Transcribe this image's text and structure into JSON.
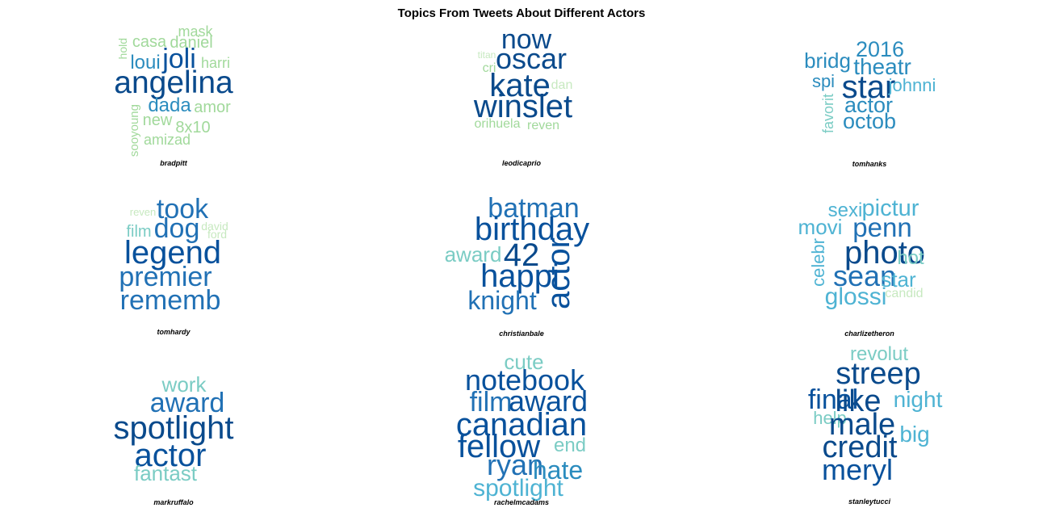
{
  "chart_data": {
    "type": "wordcloud",
    "title": "Topics From Tweets About Different Actors",
    "colors": {
      "level1": "#c7e9c0",
      "level2": "#a1d99b",
      "level3": "#7bccc4",
      "level4": "#4eb3d3",
      "level5": "#2b8cbe",
      "level6": "#2171b5",
      "level7": "#08519c",
      "level8": "#0a4a8c"
    },
    "panels": [
      {
        "caption": "bradpitt",
        "words": [
          {
            "text": "angelina",
            "weight": 10
          },
          {
            "text": "joli",
            "weight": 8
          },
          {
            "text": "loui",
            "weight": 5
          },
          {
            "text": "dada",
            "weight": 5
          },
          {
            "text": "casa",
            "weight": 3
          },
          {
            "text": "daniel",
            "weight": 3
          },
          {
            "text": "harri",
            "weight": 3
          },
          {
            "text": "mask",
            "weight": 3
          },
          {
            "text": "amor",
            "weight": 3
          },
          {
            "text": "new",
            "weight": 3
          },
          {
            "text": "8x10",
            "weight": 3
          },
          {
            "text": "amizad",
            "weight": 3
          },
          {
            "text": "hold",
            "weight": 2
          },
          {
            "text": "sooyoung",
            "weight": 2
          }
        ]
      },
      {
        "caption": "leodicaprio",
        "words": [
          {
            "text": "now",
            "weight": 9
          },
          {
            "text": "oscar",
            "weight": 9
          },
          {
            "text": "kate",
            "weight": 10
          },
          {
            "text": "winslet",
            "weight": 10
          },
          {
            "text": "titan",
            "weight": 1
          },
          {
            "text": "cri",
            "weight": 2
          },
          {
            "text": "dan",
            "weight": 1
          },
          {
            "text": "orihuela",
            "weight": 2
          },
          {
            "text": "reven",
            "weight": 2
          }
        ]
      },
      {
        "caption": "tomhanks",
        "words": [
          {
            "text": "2016",
            "weight": 6
          },
          {
            "text": "bridg",
            "weight": 6
          },
          {
            "text": "theatr",
            "weight": 6
          },
          {
            "text": "spi",
            "weight": 5
          },
          {
            "text": "star",
            "weight": 10
          },
          {
            "text": "johnni",
            "weight": 4
          },
          {
            "text": "actor",
            "weight": 6
          },
          {
            "text": "octob",
            "weight": 6
          },
          {
            "text": "favorit",
            "weight": 3
          }
        ]
      },
      {
        "caption": "tomhardy",
        "words": [
          {
            "text": "took",
            "weight": 8
          },
          {
            "text": "dog",
            "weight": 8
          },
          {
            "text": "reven",
            "weight": 2
          },
          {
            "text": "film",
            "weight": 4
          },
          {
            "text": "david",
            "weight": 2
          },
          {
            "text": "ford",
            "weight": 2
          },
          {
            "text": "legend",
            "weight": 10
          },
          {
            "text": "premier",
            "weight": 8
          },
          {
            "text": "rememb",
            "weight": 8
          }
        ]
      },
      {
        "caption": "christianbale",
        "words": [
          {
            "text": "batman",
            "weight": 8
          },
          {
            "text": "birthday",
            "weight": 10
          },
          {
            "text": "award",
            "weight": 5
          },
          {
            "text": "42",
            "weight": 10
          },
          {
            "text": "happi",
            "weight": 10
          },
          {
            "text": "knight",
            "weight": 8
          },
          {
            "text": "actor",
            "weight": 10
          }
        ]
      },
      {
        "caption": "charlizetheron",
        "words": [
          {
            "text": "sexi",
            "weight": 5
          },
          {
            "text": "pictur",
            "weight": 7
          },
          {
            "text": "movi",
            "weight": 6
          },
          {
            "text": "penn",
            "weight": 8
          },
          {
            "text": "photo",
            "weight": 10
          },
          {
            "text": "hot",
            "weight": 5
          },
          {
            "text": "celebr",
            "weight": 6
          },
          {
            "text": "sean",
            "weight": 8
          },
          {
            "text": "star",
            "weight": 6
          },
          {
            "text": "glossi",
            "weight": 7
          },
          {
            "text": "candid",
            "weight": 2
          }
        ]
      },
      {
        "caption": "markruffalo",
        "words": [
          {
            "text": "work",
            "weight": 5
          },
          {
            "text": "award",
            "weight": 8
          },
          {
            "text": "spotlight",
            "weight": 10
          },
          {
            "text": "actor",
            "weight": 10
          },
          {
            "text": "fantast",
            "weight": 5
          }
        ]
      },
      {
        "caption": "rachelmcadams",
        "words": [
          {
            "text": "cute",
            "weight": 5
          },
          {
            "text": "notebook",
            "weight": 9
          },
          {
            "text": "film",
            "weight": 8
          },
          {
            "text": "award",
            "weight": 9
          },
          {
            "text": "canadian",
            "weight": 10
          },
          {
            "text": "fellow",
            "weight": 10
          },
          {
            "text": "end",
            "weight": 4
          },
          {
            "text": "ryan",
            "weight": 9
          },
          {
            "text": "hate",
            "weight": 8
          },
          {
            "text": "spotlight",
            "weight": 6
          }
        ]
      },
      {
        "caption": "stanleytucci",
        "words": [
          {
            "text": "revolut",
            "weight": 5
          },
          {
            "text": "streep",
            "weight": 10
          },
          {
            "text": "final",
            "weight": 8
          },
          {
            "text": "like",
            "weight": 10
          },
          {
            "text": "night",
            "weight": 6
          },
          {
            "text": "help",
            "weight": 4
          },
          {
            "text": "male",
            "weight": 10
          },
          {
            "text": "big",
            "weight": 6
          },
          {
            "text": "credit",
            "weight": 10
          },
          {
            "text": "meryl",
            "weight": 10
          }
        ]
      }
    ]
  }
}
